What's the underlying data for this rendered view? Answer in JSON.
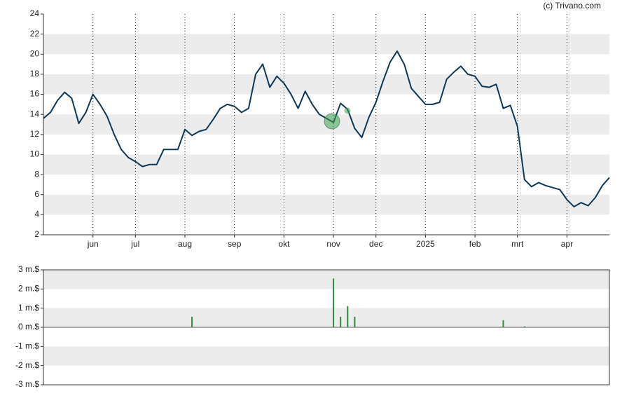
{
  "source": "(c) Trivano.com",
  "chart_data": [
    {
      "type": "line",
      "categories": [
        null,
        null,
        null,
        null,
        null,
        null,
        null,
        "jun",
        null,
        null,
        null,
        null,
        null,
        "jul",
        null,
        null,
        null,
        null,
        null,
        null,
        "aug",
        null,
        null,
        null,
        null,
        null,
        null,
        "sep",
        null,
        null,
        null,
        null,
        null,
        null,
        "okt",
        null,
        null,
        null,
        null,
        null,
        null,
        "nov",
        null,
        null,
        null,
        null,
        null,
        "dec",
        null,
        null,
        null,
        null,
        null,
        null,
        "2025",
        null,
        null,
        null,
        null,
        null,
        null,
        "feb",
        null,
        null,
        null,
        null,
        null,
        "mrt",
        null,
        null,
        null,
        null,
        null,
        null,
        "apr",
        null,
        null,
        null,
        null,
        null,
        null
      ],
      "series": [
        {
          "color": "#0e3857",
          "values": [
            13.6,
            14.2,
            15.4,
            16.2,
            15.6,
            13.1,
            14.2,
            16.0,
            15.0,
            13.8,
            12.0,
            10.5,
            9.7,
            9.3,
            8.8,
            9.0,
            9.0,
            10.5,
            10.5,
            10.5,
            12.5,
            11.9,
            12.3,
            12.5,
            13.5,
            14.6,
            15.0,
            14.8,
            14.2,
            14.6,
            18.0,
            19.0,
            16.7,
            17.8,
            17.1,
            16.0,
            14.6,
            16.3,
            15.0,
            14.0,
            13.6,
            13.2,
            15.1,
            14.5,
            12.6,
            11.7,
            13.7,
            15.2,
            17.3,
            19.2,
            20.3,
            19.0,
            16.6,
            15.8,
            15.0,
            15.0,
            15.2,
            17.5,
            18.2,
            18.8,
            18.0,
            17.8,
            16.8,
            16.7,
            17.0,
            14.6,
            14.9,
            12.8,
            7.5,
            6.8,
            7.2,
            6.9,
            6.7,
            6.5,
            5.5,
            4.8,
            5.2,
            4.9,
            5.7,
            6.9,
            7.7
          ]
        }
      ],
      "ylim": [
        2,
        24
      ],
      "yticks": [
        2,
        4,
        6,
        8,
        10,
        12,
        14,
        16,
        18,
        20,
        22,
        24
      ],
      "grid": true
    },
    {
      "type": "bar",
      "series": [
        {
          "color": "#2e8b3e",
          "values": [
            null,
            null,
            null,
            null,
            null,
            null,
            null,
            null,
            null,
            null,
            null,
            null,
            null,
            null,
            null,
            null,
            null,
            null,
            null,
            null,
            null,
            0.55,
            null,
            null,
            null,
            null,
            null,
            null,
            null,
            null,
            null,
            null,
            null,
            null,
            null,
            null,
            null,
            null,
            null,
            null,
            null,
            2.55,
            0.55,
            1.1,
            0.55,
            null,
            null,
            null,
            null,
            null,
            null,
            null,
            null,
            null,
            null,
            null,
            null,
            null,
            null,
            null,
            null,
            null,
            null,
            null,
            null,
            0.37,
            null,
            null,
            0.05,
            null,
            null,
            null,
            null,
            null,
            null,
            null,
            null,
            null,
            null,
            null,
            null
          ]
        }
      ],
      "ylim": [
        -3,
        3
      ],
      "yticks": [
        {
          "value": -3,
          "label": "-3 m.$"
        },
        {
          "value": -2,
          "label": "-2 m.$"
        },
        {
          "value": -1,
          "label": "-1 m.$"
        },
        {
          "value": 0,
          "label": "0 m.$"
        },
        {
          "value": 1,
          "label": "1 m.$"
        },
        {
          "value": 2,
          "label": "2 m.$"
        },
        {
          "value": 3,
          "label": "3 m.$"
        }
      ],
      "grid": true
    }
  ]
}
